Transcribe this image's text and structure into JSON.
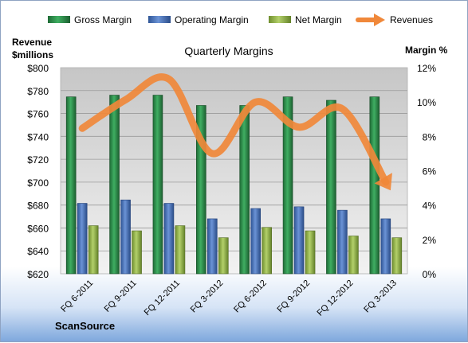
{
  "chart_data": {
    "type": "bar",
    "title": "Quarterly Margins",
    "source": "ScanSource",
    "left_axis_label": [
      "Revenue",
      "$millions"
    ],
    "right_axis_label": "Margin %",
    "categories": [
      "FQ 6-2011",
      "FQ 9-2011",
      "FQ 12-2011",
      "FQ 3-2012",
      "FQ 6-2012",
      "FQ 9-2012",
      "FQ 12-2012",
      "FQ 3-2013"
    ],
    "left_axis": {
      "min": 620,
      "max": 800,
      "step": 20,
      "tick_prefix": "$"
    },
    "right_axis": {
      "min": 0,
      "max": 12,
      "step": 2,
      "tick_suffix": "%"
    },
    "bar_series": [
      {
        "name": "Gross Margin",
        "axis": "right",
        "color": "#2e8b4a",
        "values": [
          10.3,
          10.4,
          10.4,
          9.8,
          9.8,
          10.3,
          10.1,
          10.3
        ]
      },
      {
        "name": "Operating Margin",
        "axis": "right",
        "color": "#4f74b8",
        "values": [
          4.1,
          4.3,
          4.1,
          3.2,
          3.8,
          3.9,
          3.7,
          3.2
        ]
      },
      {
        "name": "Net Margin",
        "axis": "right",
        "color": "#8fb04a",
        "values": [
          2.8,
          2.5,
          2.8,
          2.1,
          2.7,
          2.5,
          2.2,
          2.1
        ]
      }
    ],
    "line_series": {
      "name": "Revenues",
      "axis": "left",
      "color": "#f0883a",
      "values": [
        747,
        772,
        790,
        725,
        770,
        748,
        764,
        700
      ]
    },
    "grid": true,
    "legend_position": "top"
  }
}
